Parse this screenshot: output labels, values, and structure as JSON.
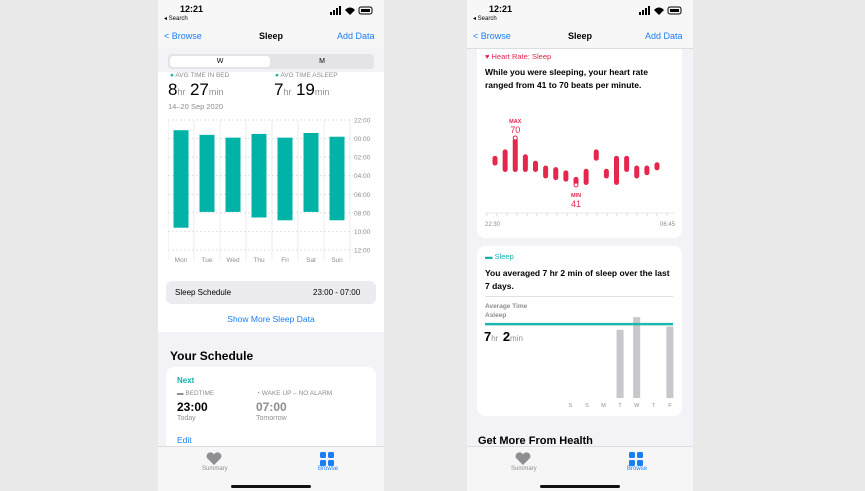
{
  "left": {
    "status_time": "12:21",
    "back_app": "◂ Search",
    "nav": {
      "back": "Browse",
      "title": "Sleep",
      "action": "Add Data"
    },
    "segments": [
      "W",
      "M"
    ],
    "in_bed": {
      "label": "AVG TIME IN BED",
      "hours": "8",
      "hours_unit": "hr",
      "minutes": "27",
      "minutes_unit": "min",
      "date_range": "14–20 Sep 2020"
    },
    "asleep": {
      "label": "AVG TIME ASLEEP",
      "hours": "7",
      "hours_unit": "hr",
      "minutes": "19",
      "minutes_unit": "min"
    },
    "sleep_chart": {
      "type": "range-bar",
      "categories": [
        "Mon",
        "Tue",
        "Wed",
        "Thu",
        "Fri",
        "Sat",
        "Sun"
      ],
      "starts": [
        23.1,
        23.6,
        23.9,
        23.5,
        23.9,
        23.4,
        23.8
      ],
      "ends": [
        33.6,
        31.9,
        31.9,
        32.5,
        32.8,
        31.9,
        32.8
      ],
      "color": "#00b3a6",
      "ylim": [
        22,
        36
      ],
      "yticks": [
        {
          "value": 22,
          "label": "22:00"
        },
        {
          "value": 24,
          "label": "00:00"
        },
        {
          "value": 26,
          "label": "02:00"
        },
        {
          "value": 28,
          "label": "04:00"
        },
        {
          "value": 30,
          "label": "06:00"
        },
        {
          "value": 32,
          "label": "08:00"
        },
        {
          "value": 34,
          "label": "10:00"
        },
        {
          "value": 36,
          "label": "12:00"
        }
      ],
      "grid": true
    },
    "schedule": {
      "label": "Sleep Schedule",
      "time": "23:00 - 07:00"
    },
    "show_more": "Show More Sleep Data",
    "your_schedule": {
      "title": "Your Schedule",
      "next": "Next",
      "bedtime": {
        "label": "BEDTIME",
        "time": "23:00",
        "day": "Today"
      },
      "wake": {
        "label": "WAKE UP – NO ALARM",
        "time": "07:00",
        "day": "Tomorrow"
      },
      "edit": "Edit"
    },
    "tabs": [
      "Summary",
      "Browse"
    ]
  },
  "right": {
    "status_time": "12:21",
    "back_app": "◂ Search",
    "nav": {
      "back": "Browse",
      "title": "Sleep",
      "action": "Add Data"
    },
    "heart": {
      "title": "Heart Rate: Sleep",
      "text": "While you were sleeping, your heart rate ranged from 41 to 70 beats per minute.",
      "chart": {
        "type": "range-bar",
        "lows": [
          53,
          49,
          49,
          49,
          49,
          45,
          44,
          43,
          41,
          41,
          56,
          45,
          41,
          49,
          45,
          47,
          50
        ],
        "highs": [
          59,
          63,
          70,
          60,
          56,
          53,
          52,
          50,
          46,
          51,
          63,
          51,
          59,
          59,
          53,
          53,
          55
        ],
        "color": "#e5264d",
        "max": {
          "label": "MAX",
          "value": 70
        },
        "min": {
          "label": "MIN",
          "value": 41
        },
        "x_labels": [
          "22:30",
          "06:45"
        ]
      }
    },
    "sleep": {
      "title": "Sleep",
      "text": "You averaged 7 hr 2 min of sleep over the last 7 days.",
      "average_label": "Average Time Asleep",
      "hours": "7",
      "hours_unit": "hr",
      "minutes": "2",
      "minutes_unit": "min",
      "chart": {
        "type": "bar",
        "categories": [
          "S",
          "S",
          "M",
          "T",
          "W",
          "T",
          "F"
        ],
        "values": [
          null,
          null,
          null,
          6.5,
          7.7,
          null,
          6.8
        ],
        "average": 7.03,
        "color": "#c7c7cc",
        "average_color": "#1fb8b0"
      }
    },
    "more": "Get More From Health",
    "tabs": [
      "Summary",
      "Browse"
    ]
  }
}
